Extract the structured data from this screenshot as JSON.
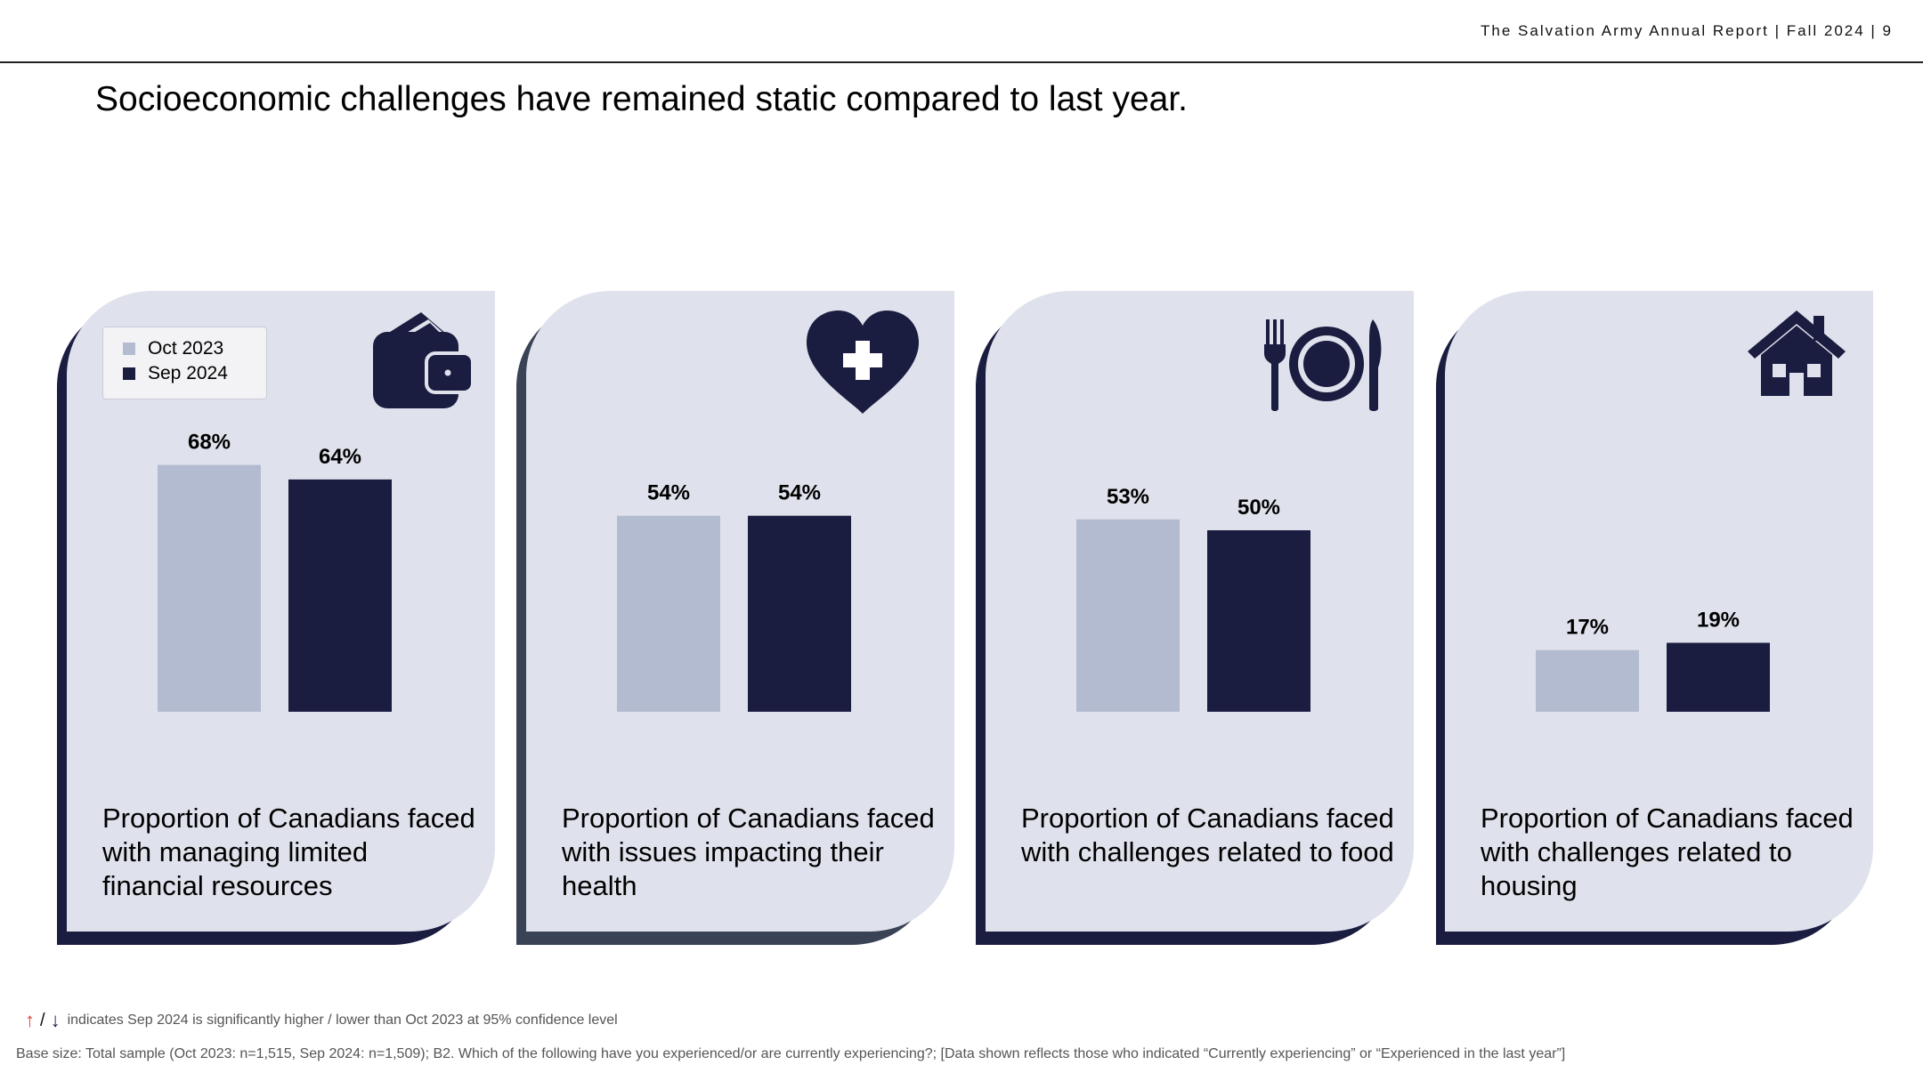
{
  "header": {
    "report_label": "The Salvation Army Annual Report | Fall 2024 | 9"
  },
  "page_title": "Socioeconomic challenges have remained static compared to last year.",
  "legend": {
    "series_a": "Oct 2023",
    "series_b": "Sep 2024"
  },
  "colors": {
    "oct_2023": "#b3bbd0",
    "sep_2024": "#1a1c40",
    "card": "#dfe2ec",
    "card_shadow": "#1a1c40"
  },
  "cards": [
    {
      "icon": "wallet-icon",
      "caption": "Proportion of Canadians faced with managing limited financial resources"
    },
    {
      "icon": "heart-plus-icon",
      "caption": "Proportion of Canadians faced with issues impacting their health"
    },
    {
      "icon": "plate-cutlery-icon",
      "caption": "Proportion of Canadians faced with challenges related to food"
    },
    {
      "icon": "house-icon",
      "caption": "Proportion of Canadians faced with challenges related to housing"
    }
  ],
  "chart_data": [
    {
      "type": "bar",
      "title": "Proportion of Canadians faced with managing limited financial resources",
      "categories": [
        "Oct 2023",
        "Sep 2024"
      ],
      "values": [
        68,
        64
      ],
      "labels": [
        "68%",
        "64%"
      ],
      "ylim": [
        0,
        100
      ]
    },
    {
      "type": "bar",
      "title": "Proportion of Canadians faced with issues impacting their health",
      "categories": [
        "Oct 2023",
        "Sep 2024"
      ],
      "values": [
        54,
        54
      ],
      "labels": [
        "54%",
        "54%"
      ],
      "ylim": [
        0,
        100
      ]
    },
    {
      "type": "bar",
      "title": "Proportion of Canadians faced with challenges related to food",
      "categories": [
        "Oct 2023",
        "Sep 2024"
      ],
      "values": [
        53,
        50
      ],
      "labels": [
        "53%",
        "50%"
      ],
      "ylim": [
        0,
        100
      ]
    },
    {
      "type": "bar",
      "title": "Proportion of Canadians faced with challenges related to housing",
      "categories": [
        "Oct 2023",
        "Sep 2024"
      ],
      "values": [
        17,
        19
      ],
      "labels": [
        "17%",
        "19%"
      ],
      "ylim": [
        0,
        100
      ]
    }
  ],
  "footnotes": {
    "significance_arrows": "↑ / ↓",
    "significance": "indicates Sep 2024 is significantly higher / lower than Oct 2023 at 95% confidence level",
    "base_size": "Base size: Total sample (Oct 2023: n=1,515, Sep 2024: n=1,509); B2. Which of the following have you experienced/or are currently experiencing?; [Data shown reflects those who indicated “Currently experiencing” or “Experienced in the last year”]"
  }
}
